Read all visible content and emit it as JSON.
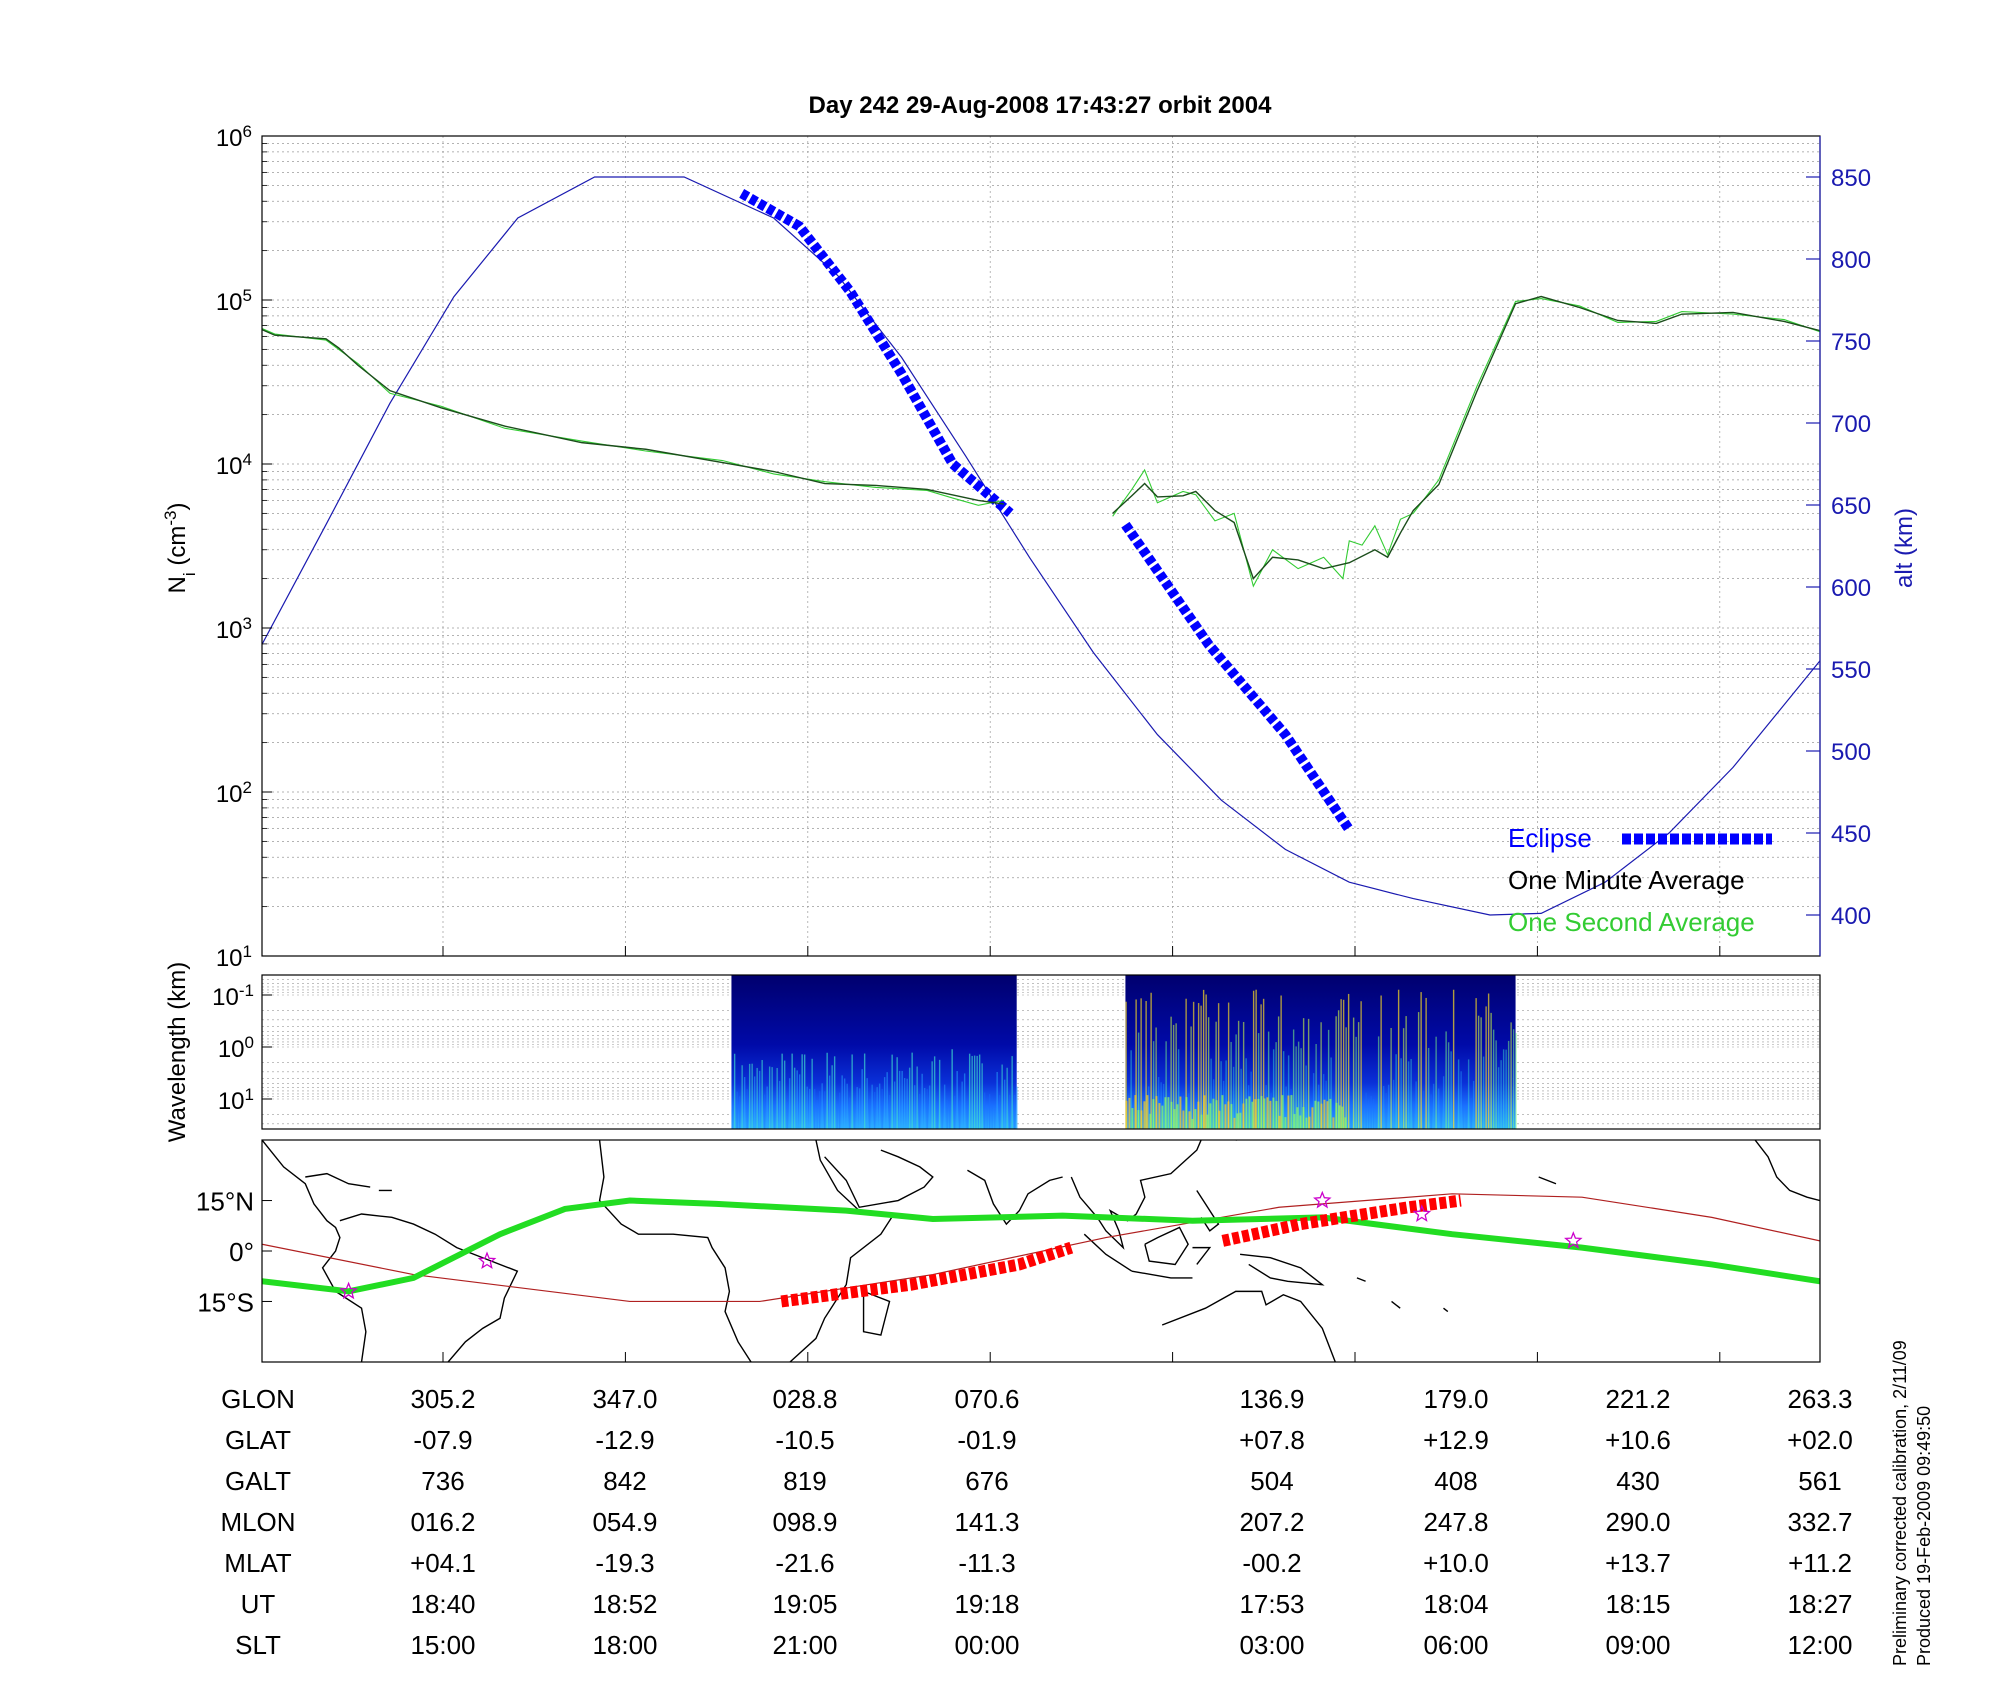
{
  "title": "Day 242  29-Aug-2008 17:43:27   orbit 2004",
  "colors": {
    "ni_minute": "#1b4d1b",
    "ni_second": "#33cc33",
    "altitude": "#1a1ab0",
    "eclipse": "#0000ff",
    "map_track": "#22dd22",
    "map_eclipse": "#ff0000",
    "map_magnetic_equator": "#b02020",
    "map_star": "#cc00cc",
    "alt_axis": "#1a1ab0"
  },
  "legend": {
    "eclipse": "Eclipse",
    "minute": "One Minute Average",
    "second": "One Second Average"
  },
  "footer": {
    "line1": "Preliminary corrected calibration, 2/11/09",
    "line2": "Produced 19-Feb-2009 09:49:50"
  },
  "chart_data": [
    {
      "id": "density",
      "type": "line",
      "ylabel_main": "N",
      "ylabel_sub": "i",
      "ylabel_units": " (cm",
      "ylabel_exp": "-3",
      "ylabel_close": ")",
      "yscale": "log",
      "ylim": [
        10,
        1000000
      ],
      "yticks": [
        {
          "base": "10",
          "exp": "1"
        },
        {
          "base": "10",
          "exp": "2"
        },
        {
          "base": "10",
          "exp": "3"
        },
        {
          "base": "10",
          "exp": "4"
        },
        {
          "base": "10",
          "exp": "5"
        },
        {
          "base": "10",
          "exp": "6"
        }
      ],
      "ylabel_right": "alt (km)",
      "y2lim": [
        375,
        875
      ],
      "y2ticks": [
        "400",
        "450",
        "500",
        "550",
        "600",
        "650",
        "700",
        "750",
        "800",
        "850"
      ],
      "grid": true,
      "legend_position": "bottom-right",
      "series": [
        {
          "role": "minute",
          "segments": [
            [
              [
                0,
                66000
              ],
              [
                10,
                61000
              ],
              [
                50,
                58000
              ],
              [
                60,
                51000
              ],
              [
                75,
                40000
              ],
              [
                100,
                28000
              ],
              [
                140,
                22000
              ],
              [
                190,
                17000
              ],
              [
                250,
                13500
              ],
              [
                300,
                12300
              ],
              [
                360,
                10200
              ],
              [
                400,
                9000
              ],
              [
                440,
                7600
              ],
              [
                480,
                7400
              ],
              [
                520,
                7000
              ],
              [
                560,
                6000
              ],
              [
                580,
                5700
              ]
            ],
            [
              [
                665,
                5000
              ],
              [
                680,
                6400
              ],
              [
                690,
                7600
              ],
              [
                700,
                6300
              ],
              [
                720,
                6400
              ],
              [
                730,
                6800
              ],
              [
                745,
                5200
              ],
              [
                760,
                4400
              ],
              [
                775,
                2000
              ],
              [
                790,
                2700
              ],
              [
                810,
                2600
              ],
              [
                830,
                2300
              ],
              [
                850,
                2500
              ],
              [
                870,
                3000
              ],
              [
                880,
                2700
              ],
              [
                890,
                3800
              ],
              [
                900,
                5200
              ],
              [
                920,
                7500
              ],
              [
                950,
                28000
              ],
              [
                980,
                95000
              ],
              [
                1000,
                105000
              ],
              [
                1030,
                90000
              ],
              [
                1060,
                75000
              ],
              [
                1090,
                72000
              ],
              [
                1110,
                82000
              ],
              [
                1150,
                84000
              ],
              [
                1190,
                74000
              ],
              [
                1218,
                65000
              ]
            ]
          ]
        },
        {
          "role": "second",
          "segments": [
            [
              [
                0,
                67000
              ],
              [
                10,
                62000
              ],
              [
                50,
                57000
              ],
              [
                60,
                50000
              ],
              [
                75,
                41000
              ],
              [
                100,
                27000
              ],
              [
                140,
                22500
              ],
              [
                190,
                16500
              ],
              [
                250,
                13800
              ],
              [
                300,
                12000
              ],
              [
                360,
                10500
              ],
              [
                400,
                8700
              ],
              [
                440,
                7800
              ],
              [
                480,
                7200
              ],
              [
                520,
                6900
              ],
              [
                540,
                6200
              ],
              [
                560,
                5600
              ],
              [
                580,
                6000
              ]
            ],
            [
              [
                665,
                4800
              ],
              [
                680,
                7000
              ],
              [
                690,
                9200
              ],
              [
                700,
                5800
              ],
              [
                720,
                6800
              ],
              [
                730,
                6500
              ],
              [
                745,
                4500
              ],
              [
                760,
                5000
              ],
              [
                775,
                1800
              ],
              [
                790,
                3000
              ],
              [
                810,
                2300
              ],
              [
                830,
                2700
              ],
              [
                845,
                2000
              ],
              [
                850,
                3400
              ],
              [
                860,
                3200
              ],
              [
                870,
                4200
              ],
              [
                880,
                2800
              ],
              [
                890,
                4600
              ],
              [
                900,
                5000
              ],
              [
                920,
                8000
              ],
              [
                950,
                30000
              ],
              [
                980,
                98000
              ],
              [
                1000,
                102000
              ],
              [
                1030,
                92000
              ],
              [
                1060,
                73000
              ],
              [
                1090,
                74000
              ],
              [
                1110,
                85000
              ],
              [
                1150,
                82000
              ],
              [
                1190,
                76000
              ],
              [
                1218,
                64000
              ]
            ]
          ]
        }
      ],
      "altitude": [
        [
          0,
          565
        ],
        [
          50,
          638
        ],
        [
          100,
          712
        ],
        [
          150,
          777
        ],
        [
          200,
          825
        ],
        [
          260,
          850
        ],
        [
          330,
          850
        ],
        [
          400,
          825
        ],
        [
          450,
          790
        ],
        [
          500,
          740
        ],
        [
          550,
          680
        ],
        [
          600,
          618
        ],
        [
          650,
          560
        ],
        [
          700,
          510
        ],
        [
          750,
          470
        ],
        [
          800,
          440
        ],
        [
          850,
          420
        ],
        [
          900,
          410
        ],
        [
          960,
          400
        ],
        [
          1000,
          401
        ],
        [
          1050,
          420
        ],
        [
          1100,
          450
        ],
        [
          1150,
          490
        ],
        [
          1218,
          555
        ]
      ],
      "eclipse": [
        [
          [
            375,
            840
          ],
          [
            420,
            820
          ],
          [
            460,
            780
          ],
          [
            500,
            730
          ],
          [
            540,
            675
          ],
          [
            585,
            645
          ]
        ],
        [
          [
            675,
            638
          ],
          [
            700,
            610
          ],
          [
            740,
            565
          ],
          [
            800,
            510
          ],
          [
            850,
            452
          ]
        ]
      ]
    },
    {
      "id": "spectrogram",
      "type": "heatmap",
      "ylabel": "Wavelength (km)",
      "yticks": [
        {
          "base": "10",
          "exp": "-1"
        },
        {
          "base": "10",
          "exp": "0"
        },
        {
          "base": "10",
          "exp": "1"
        }
      ],
      "blocks": [
        [
          367,
          590
        ],
        [
          675,
          980
        ]
      ]
    },
    {
      "id": "map",
      "type": "line",
      "xlim": [
        -95,
        265
      ],
      "ylim": [
        -33,
        33
      ],
      "yticks": [
        "15°N",
        "0°",
        "15°S"
      ],
      "track": [
        [
          -95,
          -9
        ],
        [
          -75,
          -12
        ],
        [
          -60,
          -8
        ],
        [
          -40,
          5
        ],
        [
          -25,
          12.5
        ],
        [
          -10,
          15
        ],
        [
          10,
          14
        ],
        [
          40,
          12
        ],
        [
          60,
          9.5
        ],
        [
          90,
          10.5
        ],
        [
          120,
          9
        ],
        [
          150,
          10
        ],
        [
          180,
          5
        ],
        [
          210,
          1
        ],
        [
          240,
          -4
        ],
        [
          265,
          -9
        ]
      ],
      "magnetic_equator": [
        [
          -95,
          2
        ],
        [
          -60,
          -7
        ],
        [
          -10,
          -15
        ],
        [
          20,
          -15
        ],
        [
          60,
          -7
        ],
        [
          100,
          4
        ],
        [
          140,
          13
        ],
        [
          180,
          17
        ],
        [
          210,
          16
        ],
        [
          240,
          10
        ],
        [
          265,
          3
        ]
      ],
      "eclipse": [
        [
          [
            25,
            -15
          ],
          [
            55,
            -10
          ],
          [
            80,
            -4
          ],
          [
            92,
            1
          ]
        ],
        [
          [
            127,
            3
          ],
          [
            145,
            8
          ],
          [
            170,
            13
          ],
          [
            182,
            15
          ]
        ]
      ],
      "stars": [
        [
          -75,
          -12
        ],
        [
          -43,
          -3
        ],
        [
          150,
          15
        ],
        [
          173,
          11
        ],
        [
          208,
          3
        ]
      ]
    }
  ],
  "table": {
    "rows": [
      {
        "label": "GLON",
        "values": [
          "305.2",
          "347.0",
          "028.8",
          "070.6",
          "136.9",
          "179.0",
          "221.2",
          "263.3"
        ]
      },
      {
        "label": "GLAT",
        "values": [
          "-07.9",
          "-12.9",
          "-10.5",
          "-01.9",
          "+07.8",
          "+12.9",
          "+10.6",
          "+02.0"
        ]
      },
      {
        "label": "GALT",
        "values": [
          "736",
          "842",
          "819",
          "676",
          "504",
          "408",
          "430",
          "561"
        ]
      },
      {
        "label": "MLON",
        "values": [
          "016.2",
          "054.9",
          "098.9",
          "141.3",
          "207.2",
          "247.8",
          "290.0",
          "332.7"
        ]
      },
      {
        "label": "MLAT",
        "values": [
          "+04.1",
          "-19.3",
          "-21.6",
          "-11.3",
          "-00.2",
          "+10.0",
          "+13.7",
          "+11.2"
        ]
      },
      {
        "label": "UT",
        "values": [
          "18:40",
          "18:52",
          "19:05",
          "19:18",
          "17:53",
          "18:04",
          "18:15",
          "18:27"
        ]
      },
      {
        "label": "SLT",
        "values": [
          "15:00",
          "18:00",
          "21:00",
          "00:00",
          "03:00",
          "06:00",
          "09:00",
          "12:00"
        ]
      }
    ]
  }
}
